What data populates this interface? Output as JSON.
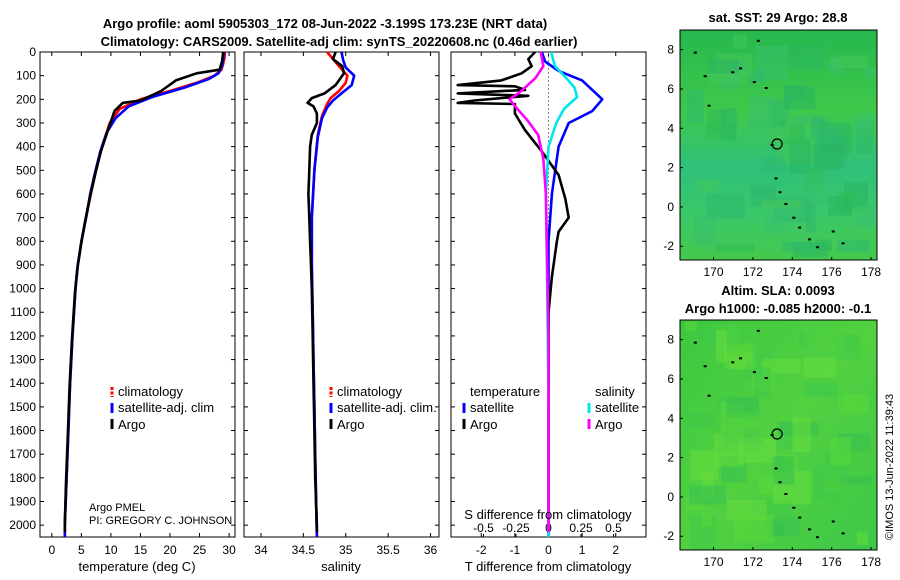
{
  "header": {
    "line1": "Argo profile: aoml 5905303_172 08-Jun-2022 -3.199S 173.23E (NRT data)",
    "line2": "Climatology: CARS2009. Satellite-adj clim: synTS_20220608.nc (0.46d earlier)"
  },
  "colors": {
    "clim": "#ff0000",
    "sat": "#0000ff",
    "argo": "#000000",
    "sal_sat": "#00e5ee",
    "sal_argo": "#ff00ff",
    "zero_line": "#888888"
  },
  "chart_data": [
    {
      "type": "line",
      "name": "temperature-profile",
      "xlabel": "temperature (deg C)",
      "ylabel": "",
      "xlim": [
        -2,
        31
      ],
      "ylim": [
        2050,
        0
      ],
      "xticks": [
        0,
        5,
        10,
        15,
        20,
        25,
        30
      ],
      "yticks": [
        0,
        100,
        200,
        300,
        400,
        500,
        600,
        700,
        800,
        900,
        1000,
        1100,
        1200,
        1300,
        1400,
        1500,
        1600,
        1700,
        1800,
        1900,
        2000
      ],
      "legend": {
        "position": "center-right",
        "entries": [
          "climatology",
          "satellite-adj. clim",
          "Argo"
        ]
      },
      "annotation": [
        "Argo PMEL",
        "PI: GREGORY C. JOHNSON"
      ],
      "series": [
        {
          "name": "climatology",
          "color_key": "clim",
          "points": [
            [
              29.3,
              0
            ],
            [
              29.2,
              25
            ],
            [
              29.0,
              50
            ],
            [
              28.7,
              75
            ],
            [
              27.5,
              100
            ],
            [
              24.5,
              130
            ],
            [
              20.0,
              165
            ],
            [
              15.0,
              200
            ],
            [
              11.5,
              240
            ],
            [
              9.8,
              300
            ],
            [
              8.5,
              400
            ],
            [
              7.5,
              500
            ],
            [
              6.6,
              600
            ],
            [
              5.8,
              700
            ],
            [
              5.0,
              800
            ],
            [
              4.4,
              900
            ],
            [
              4.0,
              1000
            ],
            [
              3.5,
              1200
            ],
            [
              3.1,
              1400
            ],
            [
              2.8,
              1600
            ],
            [
              2.5,
              1800
            ],
            [
              2.2,
              2000
            ],
            [
              2.2,
              2050
            ]
          ]
        },
        {
          "name": "satellite-adj. clim",
          "color_key": "sat",
          "points": [
            [
              29.1,
              0
            ],
            [
              29.0,
              30
            ],
            [
              28.8,
              60
            ],
            [
              28.2,
              90
            ],
            [
              26.5,
              115
            ],
            [
              22.5,
              150
            ],
            [
              17.0,
              190
            ],
            [
              13.0,
              230
            ],
            [
              10.8,
              280
            ],
            [
              9.3,
              340
            ],
            [
              8.2,
              420
            ],
            [
              7.3,
              510
            ],
            [
              6.5,
              600
            ],
            [
              5.8,
              700
            ],
            [
              5.0,
              800
            ],
            [
              4.4,
              900
            ],
            [
              4.0,
              1000
            ],
            [
              3.5,
              1200
            ],
            [
              3.1,
              1400
            ],
            [
              2.8,
              1600
            ],
            [
              2.5,
              1800
            ],
            [
              2.2,
              2000
            ],
            [
              2.2,
              2050
            ]
          ]
        },
        {
          "name": "Argo",
          "color_key": "argo",
          "points": [
            [
              29.0,
              0
            ],
            [
              28.8,
              40
            ],
            [
              28.4,
              75
            ],
            [
              24.5,
              90
            ],
            [
              21.0,
              120
            ],
            [
              18.5,
              165
            ],
            [
              15.0,
              205
            ],
            [
              12.0,
              215
            ],
            [
              10.6,
              250
            ],
            [
              9.5,
              330
            ],
            [
              8.3,
              420
            ],
            [
              7.4,
              510
            ],
            [
              6.4,
              620
            ],
            [
              5.6,
              720
            ],
            [
              4.9,
              820
            ],
            [
              4.3,
              920
            ],
            [
              3.9,
              1020
            ],
            [
              3.4,
              1220
            ],
            [
              3.0,
              1420
            ],
            [
              2.7,
              1620
            ],
            [
              2.4,
              1820
            ],
            [
              2.2,
              2000
            ],
            [
              2.2,
              2030
            ]
          ]
        }
      ]
    },
    {
      "type": "line",
      "name": "salinity-profile",
      "xlabel": "salinity",
      "xlim": [
        33.8,
        36.1
      ],
      "ylim": [
        2050,
        0
      ],
      "xticks": [
        34,
        34.5,
        35,
        35.5,
        36
      ],
      "legend": {
        "position": "center-right",
        "entries": [
          "climatology",
          "satellite-adj. clim.",
          "Argo"
        ]
      },
      "series": [
        {
          "name": "climatology",
          "color_key": "clim",
          "points": [
            [
              34.78,
              0
            ],
            [
              34.85,
              30
            ],
            [
              34.92,
              60
            ],
            [
              35.02,
              100
            ],
            [
              35.0,
              130
            ],
            [
              34.92,
              165
            ],
            [
              34.82,
              195
            ],
            [
              34.78,
              220
            ],
            [
              34.72,
              270
            ],
            [
              34.67,
              350
            ],
            [
              34.63,
              500
            ],
            [
              34.6,
              700
            ],
            [
              34.6,
              900
            ],
            [
              34.61,
              1100
            ],
            [
              34.62,
              1300
            ],
            [
              34.63,
              1500
            ],
            [
              34.64,
              1700
            ],
            [
              34.65,
              1900
            ],
            [
              34.66,
              2050
            ]
          ]
        },
        {
          "name": "satellite-adj. clim",
          "color_key": "sat",
          "points": [
            [
              34.95,
              0
            ],
            [
              34.97,
              35
            ],
            [
              35.0,
              65
            ],
            [
              35.1,
              100
            ],
            [
              35.07,
              140
            ],
            [
              34.95,
              175
            ],
            [
              34.85,
              205
            ],
            [
              34.78,
              235
            ],
            [
              34.72,
              280
            ],
            [
              34.67,
              360
            ],
            [
              34.63,
              500
            ],
            [
              34.6,
              700
            ],
            [
              34.6,
              900
            ],
            [
              34.61,
              1100
            ],
            [
              34.62,
              1300
            ],
            [
              34.63,
              1500
            ],
            [
              34.64,
              1700
            ],
            [
              34.65,
              1900
            ],
            [
              34.66,
              2050
            ]
          ]
        },
        {
          "name": "Argo",
          "color_key": "argo",
          "points": [
            [
              34.88,
              0
            ],
            [
              34.85,
              30
            ],
            [
              34.96,
              60
            ],
            [
              34.98,
              90
            ],
            [
              34.88,
              140
            ],
            [
              34.75,
              175
            ],
            [
              34.6,
              195
            ],
            [
              34.55,
              215
            ],
            [
              34.62,
              230
            ],
            [
              34.66,
              260
            ],
            [
              34.66,
              300
            ],
            [
              34.6,
              350
            ],
            [
              34.58,
              400
            ],
            [
              34.57,
              500
            ],
            [
              34.56,
              600
            ],
            [
              34.57,
              700
            ],
            [
              34.58,
              800
            ],
            [
              34.59,
              900
            ],
            [
              34.6,
              1000
            ],
            [
              34.61,
              1200
            ],
            [
              34.62,
              1400
            ],
            [
              34.63,
              1600
            ],
            [
              34.64,
              1800
            ],
            [
              34.66,
              2000
            ],
            [
              34.66,
              2030
            ]
          ]
        }
      ]
    },
    {
      "type": "line",
      "name": "difference-profile",
      "xlabel": "T difference from climatology",
      "xlabel2": "S difference from climatology",
      "xlim": [
        -2.9,
        2.9
      ],
      "ylim": [
        2050,
        0
      ],
      "xticks": [
        -2,
        -1,
        0,
        1,
        2
      ],
      "xticks2": [
        -0.5,
        -0.25,
        0,
        0.25,
        0.5
      ],
      "legend": {
        "position": "center",
        "headers": [
          "temperature",
          "salinity"
        ],
        "entries": [
          "satellite",
          "Argo",
          "satellite",
          "Argo"
        ]
      },
      "series": [
        {
          "name": "temperature satellite",
          "color_key": "sat",
          "points": [
            [
              -0.2,
              0
            ],
            [
              -0.1,
              40
            ],
            [
              0.3,
              80
            ],
            [
              1.0,
              120
            ],
            [
              1.6,
              200
            ],
            [
              1.3,
              250
            ],
            [
              0.6,
              300
            ],
            [
              0.3,
              400
            ],
            [
              0.1,
              600
            ],
            [
              0.0,
              800
            ],
            [
              0.0,
              1000
            ],
            [
              0.0,
              1500
            ],
            [
              0.0,
              2050
            ]
          ]
        },
        {
          "name": "temperature Argo",
          "color_key": "argo",
          "points": [
            [
              -0.4,
              0
            ],
            [
              -0.6,
              30
            ],
            [
              -0.5,
              60
            ],
            [
              -0.8,
              90
            ],
            [
              -1.4,
              120
            ],
            [
              -2.7,
              140
            ],
            [
              -1.0,
              145
            ],
            [
              -0.7,
              160
            ],
            [
              -2.7,
              175
            ],
            [
              -0.6,
              185
            ],
            [
              -2.2,
              205
            ],
            [
              -2.7,
              215
            ],
            [
              -1.0,
              220
            ],
            [
              -1.0,
              260
            ],
            [
              -0.7,
              330
            ],
            [
              -0.2,
              420
            ],
            [
              0.3,
              520
            ],
            [
              0.5,
              620
            ],
            [
              0.6,
              700
            ],
            [
              0.3,
              760
            ],
            [
              0.25,
              800
            ],
            [
              0.1,
              950
            ],
            [
              0.0,
              1100
            ],
            [
              0.0,
              1400
            ],
            [
              0.0,
              1800
            ],
            [
              0.0,
              2030
            ]
          ]
        },
        {
          "name": "salinity satellite",
          "color_key": "sal_sat",
          "points": [
            [
              0.02,
              0
            ],
            [
              0.05,
              60
            ],
            [
              0.12,
              100
            ],
            [
              0.2,
              150
            ],
            [
              0.22,
              190
            ],
            [
              0.12,
              240
            ],
            [
              0.06,
              300
            ],
            [
              0.0,
              400
            ],
            [
              -0.02,
              600
            ],
            [
              -0.01,
              1000
            ],
            [
              0.0,
              1500
            ],
            [
              0.0,
              2050
            ]
          ]
        },
        {
          "name": "salinity Argo",
          "color_key": "sal_argo",
          "points": [
            [
              -0.06,
              0
            ],
            [
              -0.04,
              60
            ],
            [
              -0.1,
              110
            ],
            [
              -0.22,
              170
            ],
            [
              -0.3,
              200
            ],
            [
              -0.24,
              240
            ],
            [
              -0.16,
              290
            ],
            [
              -0.08,
              350
            ],
            [
              -0.04,
              450
            ],
            [
              -0.02,
              600
            ],
            [
              -0.01,
              900
            ],
            [
              0.0,
              1200
            ],
            [
              0.0,
              1600
            ],
            [
              0.0,
              2030
            ]
          ]
        }
      ]
    },
    {
      "type": "heatmap",
      "name": "sst-map",
      "title": "sat. SST: 29 Argo: 28.8",
      "xlim": [
        168.3,
        178.3
      ],
      "ylim": [
        -2.7,
        9.0
      ],
      "xticks": [
        170,
        172,
        174,
        176,
        178
      ],
      "yticks": [
        -2,
        0,
        2,
        4,
        6,
        8
      ],
      "marker": {
        "x": 173.23,
        "y": 3.2
      }
    },
    {
      "type": "heatmap",
      "name": "sla-map",
      "title": "Altim. SLA: 0.0093",
      "subtitle": "Argo h1000: -0.085 h2000: -0.1",
      "xlim": [
        168.3,
        178.3
      ],
      "ylim": [
        -2.7,
        9.0
      ],
      "xticks": [
        170,
        172,
        174,
        176,
        178
      ],
      "yticks": [
        -2,
        0,
        2,
        4,
        6,
        8
      ],
      "marker": {
        "x": 173.23,
        "y": 3.2
      }
    }
  ],
  "footer": {
    "credit": "©IMOS 13-Jun-2022 11:39:43"
  }
}
